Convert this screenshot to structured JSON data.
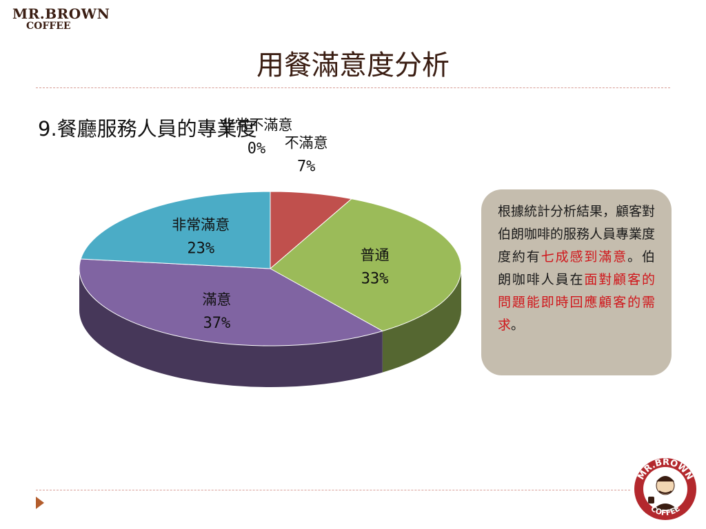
{
  "brand": {
    "line1": "MR.BROWN",
    "line2": "COFFEE"
  },
  "slide": {
    "title": "用餐滿意度分析"
  },
  "chart_data": {
    "type": "pie",
    "title": "9.餐廳服務人員的專業度",
    "slices": [
      {
        "name": "非常不滿意",
        "value": 0,
        "label": "0%",
        "color": "#c0504d"
      },
      {
        "name": "不滿意",
        "value": 7,
        "label": "7%",
        "color": "#c0504d"
      },
      {
        "name": "普通",
        "value": 33,
        "label": "33%",
        "color": "#9bbb59"
      },
      {
        "name": "滿意",
        "value": 37,
        "label": "37%",
        "color": "#8064a2"
      },
      {
        "name": "非常滿意",
        "value": 23,
        "label": "23%",
        "color": "#4bacc6"
      }
    ]
  },
  "info": {
    "text_before": "根據統計分析結果，顧客對伯朗咖啡的服務人員專業度度約有",
    "highlight1": "七成感到滿意",
    "text_middle": "。伯朗咖啡人員在",
    "highlight2": "面對顧客的問題能即時回應顧客的需求",
    "text_after": "。"
  },
  "logo": {
    "top": "MR.BROWN",
    "bottom": "COFFEE"
  }
}
